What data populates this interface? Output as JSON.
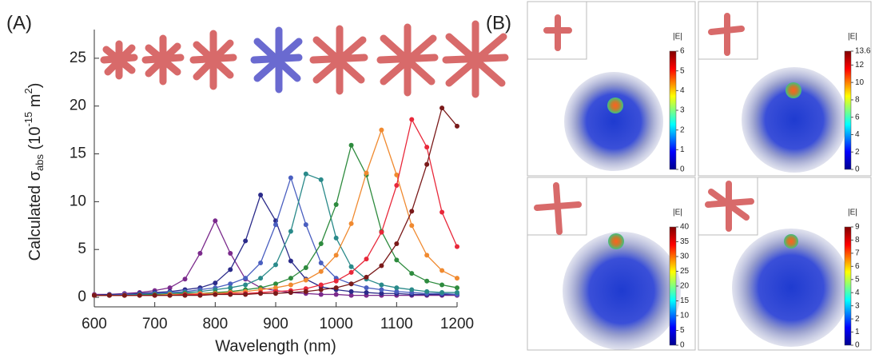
{
  "panel_labels": [
    "(A)",
    "(B)"
  ],
  "chart_data": {
    "type": "line",
    "y_label": [
      "Calculated σ",
      "abs",
      " (10",
      "-15",
      " m",
      "2",
      ")"
    ],
    "x_label": "Wavelength (nm)",
    "x": [
      600,
      625,
      650,
      675,
      700,
      725,
      750,
      775,
      800,
      825,
      850,
      875,
      900,
      925,
      950,
      975,
      1000,
      1025,
      1050,
      1075,
      1100,
      1125,
      1150,
      1175,
      1200
    ],
    "xlim": [
      600,
      1200
    ],
    "xticks": [
      600,
      700,
      800,
      900,
      1000,
      1100,
      1200
    ],
    "ylim": [
      -1,
      28
    ],
    "yticks": [
      0,
      5,
      10,
      15,
      20,
      25
    ],
    "series": [
      {
        "color": "#7b2a8c",
        "values": [
          0.3,
          0.3,
          0.4,
          0.5,
          0.7,
          1.0,
          1.9,
          4.6,
          8.0,
          4.6,
          1.9,
          1.0,
          0.7,
          0.5,
          0.4,
          0.3,
          0.3,
          0.2,
          0.2,
          0.2,
          0.2,
          0.2,
          0.2,
          0.2,
          0.2
        ]
      },
      {
        "color": "#2b2b8a",
        "values": [
          0.2,
          0.3,
          0.3,
          0.4,
          0.5,
          0.6,
          0.8,
          1.0,
          1.5,
          2.9,
          5.9,
          10.7,
          8.0,
          3.8,
          1.9,
          1.1,
          0.8,
          0.6,
          0.5,
          0.4,
          0.4,
          0.3,
          0.3,
          0.3,
          0.3
        ]
      },
      {
        "color": "#4a5fc0",
        "values": [
          0.2,
          0.2,
          0.3,
          0.3,
          0.4,
          0.5,
          0.6,
          0.8,
          1.0,
          1.4,
          2.0,
          3.6,
          7.6,
          12.5,
          7.6,
          3.6,
          2.0,
          1.4,
          1.0,
          0.8,
          0.6,
          0.5,
          0.4,
          0.4,
          0.3
        ]
      },
      {
        "color": "#2a8a8a",
        "values": [
          0.2,
          0.2,
          0.2,
          0.3,
          0.3,
          0.4,
          0.5,
          0.6,
          0.8,
          1.0,
          1.3,
          2.0,
          3.4,
          6.9,
          12.9,
          12.3,
          6.2,
          3.2,
          1.9,
          1.3,
          1.0,
          0.8,
          0.6,
          0.5,
          0.5
        ]
      },
      {
        "color": "#2e8b3e",
        "values": [
          0.2,
          0.2,
          0.2,
          0.2,
          0.3,
          0.3,
          0.4,
          0.4,
          0.5,
          0.6,
          0.8,
          1.0,
          1.4,
          2.0,
          3.1,
          5.6,
          9.7,
          15.9,
          12.8,
          6.9,
          3.9,
          2.5,
          1.7,
          1.3,
          1.0
        ]
      },
      {
        "color": "#f08a30",
        "values": [
          0.2,
          0.2,
          0.2,
          0.2,
          0.2,
          0.3,
          0.3,
          0.4,
          0.4,
          0.5,
          0.6,
          0.8,
          1.0,
          1.3,
          1.8,
          2.7,
          4.4,
          7.7,
          13.0,
          17.5,
          12.8,
          7.5,
          4.4,
          2.8,
          2.0
        ]
      },
      {
        "color": "#e8283a",
        "values": [
          0.2,
          0.2,
          0.2,
          0.2,
          0.2,
          0.2,
          0.3,
          0.3,
          0.3,
          0.4,
          0.4,
          0.5,
          0.6,
          0.7,
          0.9,
          1.3,
          1.7,
          2.6,
          4.0,
          6.8,
          11.7,
          18.6,
          15.7,
          8.9,
          5.3
        ]
      },
      {
        "color": "#7a1a1a",
        "values": [
          0.2,
          0.2,
          0.2,
          0.2,
          0.2,
          0.2,
          0.2,
          0.2,
          0.3,
          0.3,
          0.3,
          0.4,
          0.4,
          0.5,
          0.6,
          0.8,
          1.0,
          1.4,
          2.1,
          3.3,
          5.6,
          9.0,
          13.9,
          19.8,
          17.9
        ]
      }
    ]
  },
  "field_maps": [
    {
      "label": "|E|",
      "lim": [
        0,
        6
      ],
      "ticks": [
        0,
        1,
        2,
        3,
        4,
        5,
        6
      ]
    },
    {
      "label": "|E|",
      "lim": [
        0,
        13.6
      ],
      "ticks": [
        0,
        2,
        4,
        6,
        8,
        10,
        12,
        13.6
      ]
    },
    {
      "label": "|E|",
      "lim": [
        0,
        40
      ],
      "ticks": [
        0,
        5,
        10,
        15,
        20,
        25,
        30,
        35,
        40
      ]
    },
    {
      "label": "|E|",
      "lim": [
        0,
        9
      ],
      "ticks": [
        0,
        1,
        2,
        3,
        4,
        5,
        6,
        7,
        8,
        9
      ]
    }
  ]
}
